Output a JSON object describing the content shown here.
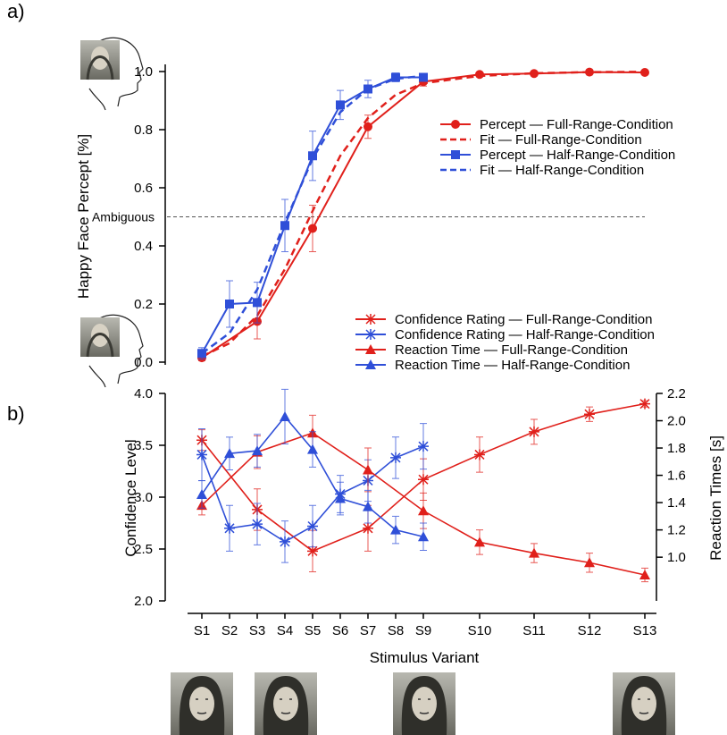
{
  "panel_labels": {
    "a": "a)",
    "b": "b)"
  },
  "colors": {
    "full": "#e0201b",
    "half": "#2f4fd8",
    "axis": "#000000",
    "ambig": "#555555"
  },
  "icons": [
    "profile-face-icon",
    "profile-face-icon",
    "mona-lisa-thumbnail",
    "mona-lisa-thumbnail",
    "mona-lisa-thumbnail",
    "mona-lisa-thumbnail"
  ],
  "chart_data": [
    {
      "type": "line",
      "panel": "a)",
      "ylabel": "Happy Face Percept [%]",
      "ylim": [
        0,
        1
      ],
      "yticks": [
        "0.0",
        "0.2",
        "0.4",
        "0.6",
        "0.8",
        "1.0"
      ],
      "x": [
        "S1",
        "S2",
        "S3",
        "S4",
        "S5",
        "S6",
        "S7",
        "S8",
        "S9",
        "S10",
        "S11",
        "S12",
        "S13"
      ],
      "annotation": "Ambiguous",
      "ambiguous_level": 0.5,
      "series": [
        {
          "name": "Percept — Full-Range-Condition",
          "kind": "percept",
          "cond": "full",
          "x": [
            "S1",
            "S3",
            "S5",
            "S7",
            "S9",
            "S10",
            "S11",
            "S12",
            "S13"
          ],
          "values": [
            0.015,
            0.14,
            0.46,
            0.81,
            0.965,
            0.99,
            0.993,
            0.998,
            0.997
          ],
          "err": [
            0.01,
            0.06,
            0.08,
            0.04,
            0.015,
            0.005,
            0.004,
            0.002,
            0.004
          ]
        },
        {
          "name": "Fit — Full-Range-Condition",
          "kind": "fit",
          "cond": "full",
          "x": [
            "S1",
            "S2",
            "S3",
            "S4",
            "S5",
            "S6",
            "S7",
            "S8",
            "S9",
            "S10",
            "S11",
            "S12",
            "S13"
          ],
          "values": [
            0.02,
            0.065,
            0.16,
            0.32,
            0.52,
            0.71,
            0.84,
            0.92,
            0.96,
            0.985,
            0.994,
            0.998,
            0.999
          ]
        },
        {
          "name": "Percept — Half-Range-Condition",
          "kind": "percept",
          "cond": "half",
          "x": [
            "S1",
            "S2",
            "S3",
            "S4",
            "S5",
            "S6",
            "S7",
            "S8",
            "S9"
          ],
          "values": [
            0.03,
            0.2,
            0.205,
            0.47,
            0.71,
            0.885,
            0.94,
            0.98,
            0.98
          ],
          "err": [
            0.02,
            0.08,
            0.07,
            0.09,
            0.085,
            0.05,
            0.03,
            0.015,
            0.01
          ]
        },
        {
          "name": "Fit — Half-Range-Condition",
          "kind": "fit",
          "cond": "half",
          "x": [
            "S1",
            "S2",
            "S3",
            "S4",
            "S5",
            "S6",
            "S7",
            "S8",
            "S9"
          ],
          "values": [
            0.03,
            0.1,
            0.25,
            0.48,
            0.7,
            0.86,
            0.94,
            0.975,
            0.985
          ]
        }
      ]
    },
    {
      "type": "line",
      "panel": "b)",
      "xlabel": "Stimulus Variant",
      "ylabel": "Confidence Level",
      "y2label": "Reaction Times [s]",
      "ylim": [
        2.0,
        4.0
      ],
      "y2lim": [
        0.68,
        2.2
      ],
      "yticks": [
        "2.0",
        "2.5",
        "3.0",
        "3.5",
        "4.0"
      ],
      "y2ticks": [
        "1.0",
        "1.2",
        "1.4",
        "1.6",
        "1.8",
        "2.0",
        "2.2"
      ],
      "x": [
        "S1",
        "S2",
        "S3",
        "S4",
        "S5",
        "S6",
        "S7",
        "S8",
        "S9",
        "S10",
        "S11",
        "S12",
        "S13"
      ],
      "series": [
        {
          "name": "Confidence Rating — Full-Range-Condition",
          "kind": "confidence",
          "cond": "full",
          "axis": "left",
          "x": [
            "S1",
            "S3",
            "S5",
            "S7",
            "S9",
            "S10",
            "S11",
            "S12",
            "S13"
          ],
          "values": [
            3.55,
            2.88,
            2.48,
            2.7,
            3.17,
            3.41,
            3.63,
            3.8,
            3.9
          ],
          "err": [
            0.1,
            0.2,
            0.2,
            0.22,
            0.2,
            0.17,
            0.12,
            0.07,
            0.03
          ]
        },
        {
          "name": "Confidence Rating — Half-Range-Condition",
          "kind": "confidence",
          "cond": "half",
          "axis": "left",
          "x": [
            "S1",
            "S2",
            "S3",
            "S4",
            "S5",
            "S6",
            "S7",
            "S8",
            "S9"
          ],
          "values": [
            3.41,
            2.7,
            2.74,
            2.57,
            2.72,
            3.03,
            3.16,
            3.38,
            3.49
          ],
          "err": [
            0.25,
            0.22,
            0.2,
            0.2,
            0.2,
            0.18,
            0.2,
            0.2,
            0.22
          ]
        },
        {
          "name": "Reaction Time — Full-Range-Condition",
          "kind": "reaction",
          "cond": "full",
          "axis": "right",
          "x": [
            "S1",
            "S3",
            "S5",
            "S7",
            "S9",
            "S10",
            "S11",
            "S12",
            "S13"
          ],
          "values": [
            1.38,
            1.77,
            1.91,
            1.64,
            1.34,
            1.11,
            1.03,
            0.96,
            0.87
          ],
          "err": [
            0.07,
            0.12,
            0.13,
            0.16,
            0.13,
            0.09,
            0.07,
            0.07,
            0.05
          ]
        },
        {
          "name": "Reaction Time — Half-Range-Condition",
          "kind": "reaction",
          "cond": "half",
          "axis": "right",
          "x": [
            "S1",
            "S2",
            "S3",
            "S4",
            "S5",
            "S6",
            "S7",
            "S8",
            "S9"
          ],
          "values": [
            1.46,
            1.76,
            1.78,
            2.03,
            1.79,
            1.43,
            1.37,
            1.2,
            1.15
          ],
          "err": [
            0.1,
            0.12,
            0.12,
            0.2,
            0.13,
            0.12,
            0.12,
            0.1,
            0.1
          ]
        }
      ]
    }
  ]
}
